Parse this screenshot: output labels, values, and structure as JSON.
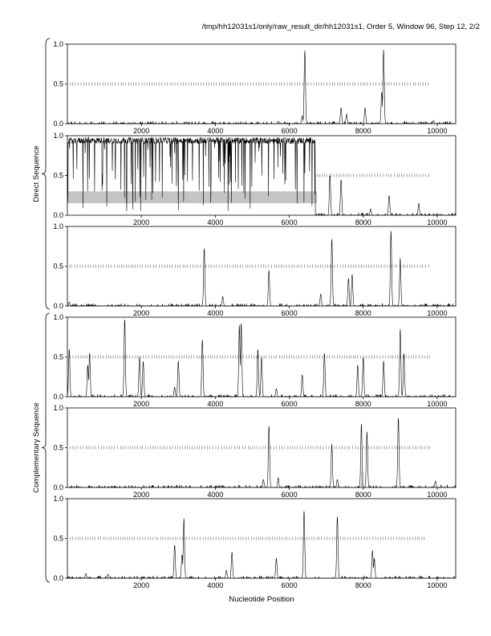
{
  "header": "/tmp/hh12031s1/only/raw_result_dir/hh12031s1, Order 5, Window 96, Step 12, 2/2",
  "groups": [
    {
      "label": "Direct Sequence"
    },
    {
      "label": "Complementary Sequence"
    }
  ],
  "chart_data": {
    "type": "line",
    "xlabel": "Nucleotide Position",
    "xlim": [
      0,
      10500
    ],
    "ylim": [
      0,
      1
    ],
    "x_ticks": [
      2000,
      4000,
      6000,
      8000,
      10000
    ],
    "x_tick_labels": [
      "2000",
      "4000",
      "6000",
      "8000",
      "10000"
    ],
    "y_ticks": [
      0,
      0.5,
      1
    ],
    "y_tick_labels": [
      "0.0",
      "0.5",
      "1.0"
    ],
    "grid": false,
    "panels": [
      {
        "group": "Direct Sequence",
        "dash_range": [
          0,
          9800
        ],
        "peaks": [
          [
            6420,
            0.92
          ],
          [
            8550,
            0.93
          ],
          [
            7400,
            0.2
          ],
          [
            7550,
            0.12
          ],
          [
            8050,
            0.2
          ],
          [
            8500,
            0.4
          ],
          [
            6350,
            0.1
          ],
          [
            5700,
            0.03
          ],
          [
            9900,
            0.04
          ],
          [
            3200,
            0.02
          ]
        ],
        "highlight": null
      },
      {
        "group": "Direct Sequence",
        "dash_range": [
          6700,
          9800
        ],
        "peaks": [
          [
            7100,
            0.5
          ],
          [
            7400,
            0.45
          ],
          [
            8700,
            0.25
          ],
          [
            9500,
            0.15
          ],
          [
            8200,
            0.08
          ]
        ],
        "dense_range": [
          0,
          6700
        ],
        "highlight": {
          "x0": 0,
          "x1": 6750,
          "y0": 0.15,
          "y1": 0.3
        }
      },
      {
        "group": "Direct Sequence",
        "dash_range": [
          0,
          9800
        ],
        "peaks": [
          [
            3700,
            0.73
          ],
          [
            5450,
            0.45
          ],
          [
            7150,
            0.85
          ],
          [
            7600,
            0.35
          ],
          [
            7700,
            0.4
          ],
          [
            8750,
            0.95
          ],
          [
            9000,
            0.6
          ],
          [
            4200,
            0.12
          ],
          [
            6850,
            0.15
          ],
          [
            50,
            0.05
          ]
        ],
        "highlight": null
      },
      {
        "group": "Complementary Sequence",
        "dash_range": [
          0,
          9800
        ],
        "peaks": [
          [
            50,
            0.6
          ],
          [
            550,
            0.4
          ],
          [
            600,
            0.55
          ],
          [
            1550,
            0.98
          ],
          [
            1950,
            0.5
          ],
          [
            2050,
            0.45
          ],
          [
            3000,
            0.45
          ],
          [
            3650,
            0.72
          ],
          [
            4650,
            0.9
          ],
          [
            4700,
            0.93
          ],
          [
            5150,
            0.6
          ],
          [
            5250,
            0.5
          ],
          [
            6350,
            0.28
          ],
          [
            6950,
            0.55
          ],
          [
            7850,
            0.4
          ],
          [
            8000,
            0.5
          ],
          [
            8550,
            0.45
          ],
          [
            9000,
            0.85
          ],
          [
            9100,
            0.55
          ],
          [
            2900,
            0.12
          ],
          [
            5650,
            0.1
          ]
        ],
        "highlight": null
      },
      {
        "group": "Complementary Sequence",
        "dash_range": [
          0,
          9800
        ],
        "peaks": [
          [
            5450,
            0.78
          ],
          [
            7150,
            0.55
          ],
          [
            7950,
            0.8
          ],
          [
            8100,
            0.7
          ],
          [
            8950,
            0.88
          ],
          [
            5300,
            0.1
          ],
          [
            5700,
            0.12
          ],
          [
            9950,
            0.08
          ],
          [
            7300,
            0.1
          ]
        ],
        "bar": {
          "x0": 7950,
          "x1": 8000,
          "y": 0.2
        },
        "highlight": null
      },
      {
        "group": "Complementary Sequence",
        "dash_range": [
          0,
          9700
        ],
        "peaks": [
          [
            2900,
            0.42
          ],
          [
            3100,
            0.3
          ],
          [
            3150,
            0.75
          ],
          [
            4450,
            0.33
          ],
          [
            5650,
            0.25
          ],
          [
            6400,
            0.85
          ],
          [
            7300,
            0.78
          ],
          [
            8250,
            0.35
          ],
          [
            8300,
            0.25
          ],
          [
            4300,
            0.1
          ],
          [
            1100,
            0.05
          ],
          [
            500,
            0.06
          ]
        ],
        "highlight": null
      }
    ]
  }
}
